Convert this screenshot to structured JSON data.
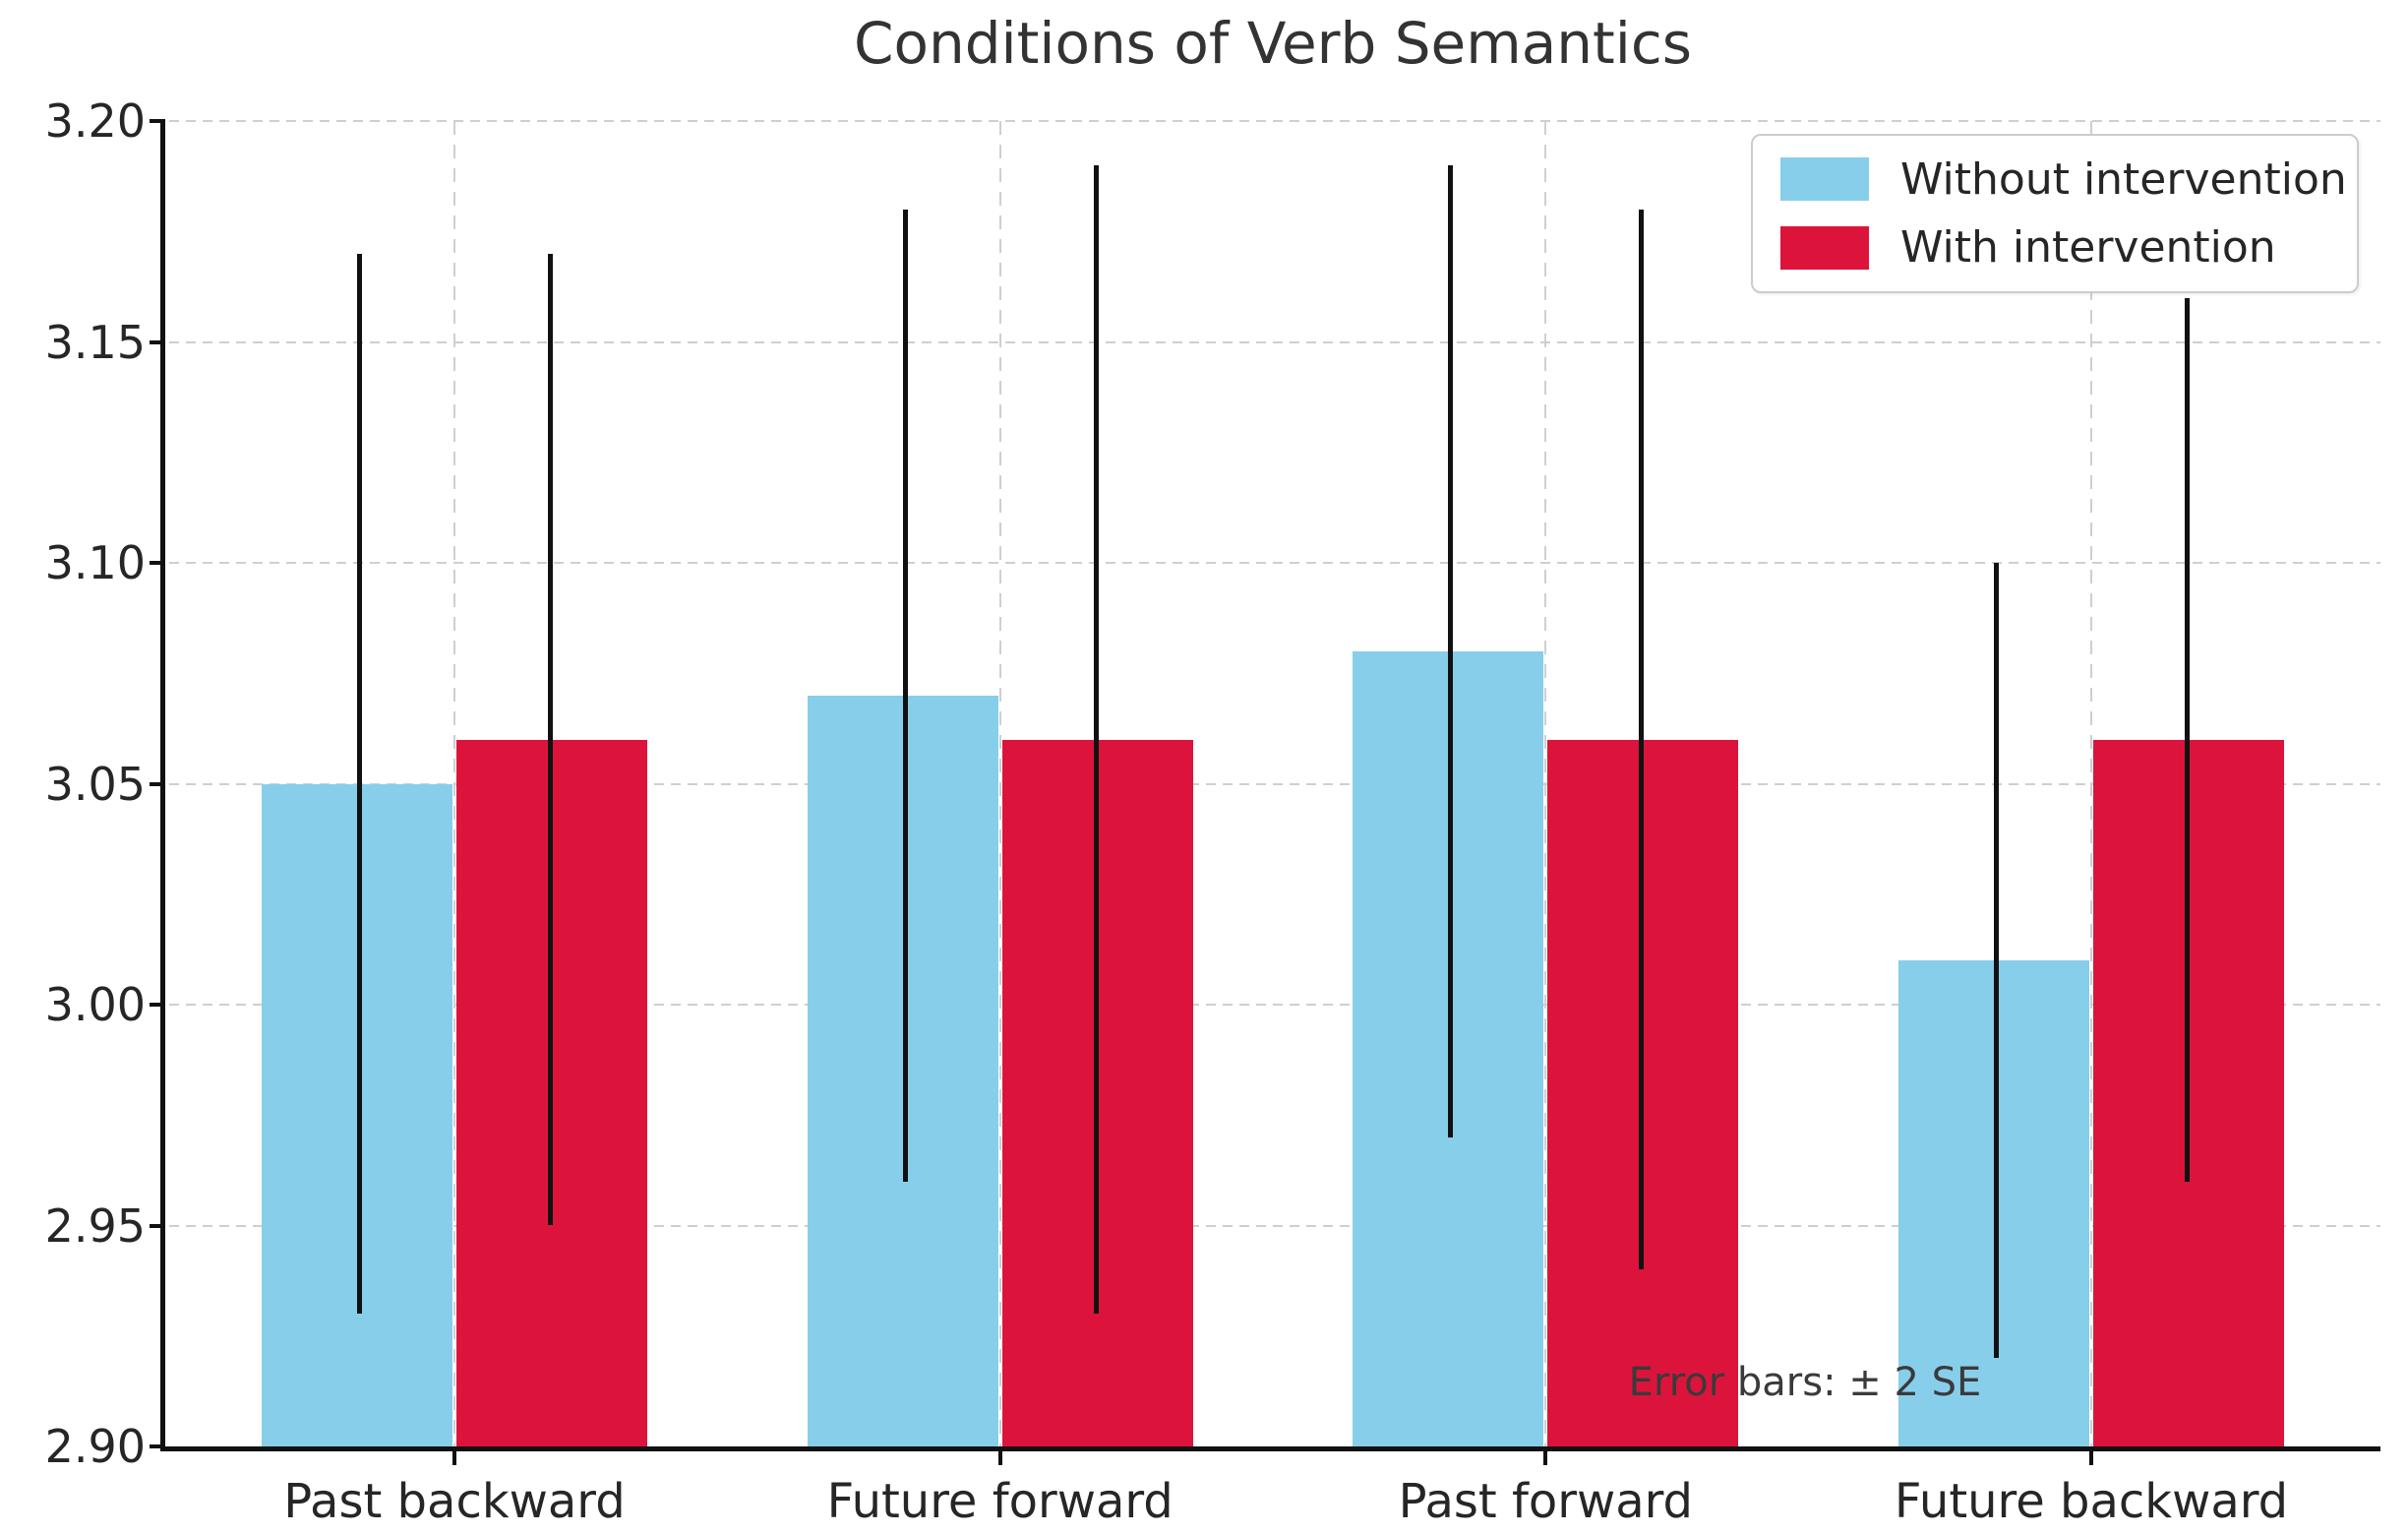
{
  "chart_data": {
    "type": "bar",
    "title": "Conditions of Verb Semantics",
    "categories": [
      "Past backward",
      "Future forward",
      "Past forward",
      "Future backward"
    ],
    "series": [
      {
        "name": "Without intervention",
        "color": "#87CEEB",
        "values": [
          3.05,
          3.07,
          3.08,
          3.01
        ],
        "error_2se": [
          0.12,
          0.11,
          0.11,
          0.09
        ]
      },
      {
        "name": "With intervention",
        "color": "#DC143C",
        "values": [
          3.06,
          3.06,
          3.06,
          3.06
        ],
        "error_2se": [
          0.11,
          0.13,
          0.12,
          0.1
        ]
      }
    ],
    "error_note": "Error bars: ± 2 SE",
    "ylim": [
      2.9,
      3.2
    ],
    "yticks": [
      3.2,
      3.15,
      3.1,
      3.05,
      3.0,
      2.95,
      2.9
    ],
    "ytick_labels": [
      "3.20",
      "3.15",
      "3.10",
      "3.05",
      "3.00",
      "2.95",
      "2.90"
    ],
    "grid": true,
    "grid_style": "dashed",
    "legend_position": "upper right",
    "error_bar_caps": false
  }
}
